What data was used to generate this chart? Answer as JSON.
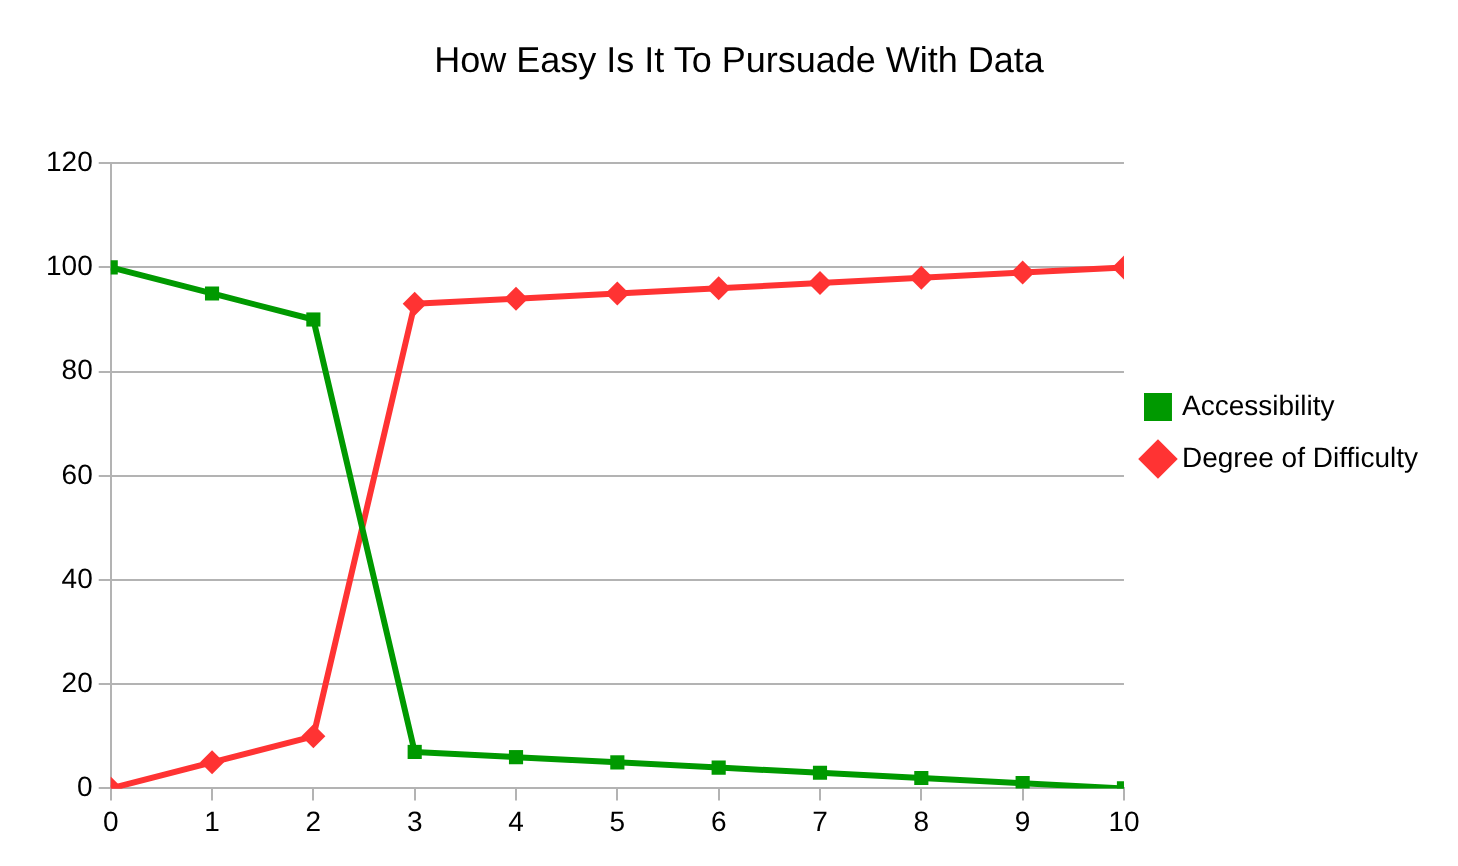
{
  "chart_data": {
    "type": "line",
    "title": "How Easy Is It To Pursuade With Data",
    "x": [
      0,
      1,
      2,
      3,
      4,
      5,
      6,
      7,
      8,
      9,
      10
    ],
    "series": [
      {
        "name": "Accessibility",
        "color": "#009900",
        "marker": "square",
        "values": [
          100,
          95,
          90,
          7,
          6,
          5,
          4,
          3,
          2,
          1,
          0
        ]
      },
      {
        "name": "Degree of Difficulty",
        "color": "#ff3333",
        "marker": "diamond",
        "values": [
          0,
          5,
          10,
          93,
          94,
          95,
          96,
          97,
          98,
          99,
          100
        ]
      }
    ],
    "xlim": [
      0,
      10
    ],
    "xticks": [
      0,
      1,
      2,
      3,
      4,
      5,
      6,
      7,
      8,
      9,
      10
    ],
    "ylim": [
      0,
      120
    ],
    "yticks": [
      0,
      20,
      40,
      60,
      80,
      100,
      120
    ],
    "grid": "y",
    "legend": "right",
    "line_style": "solid"
  }
}
